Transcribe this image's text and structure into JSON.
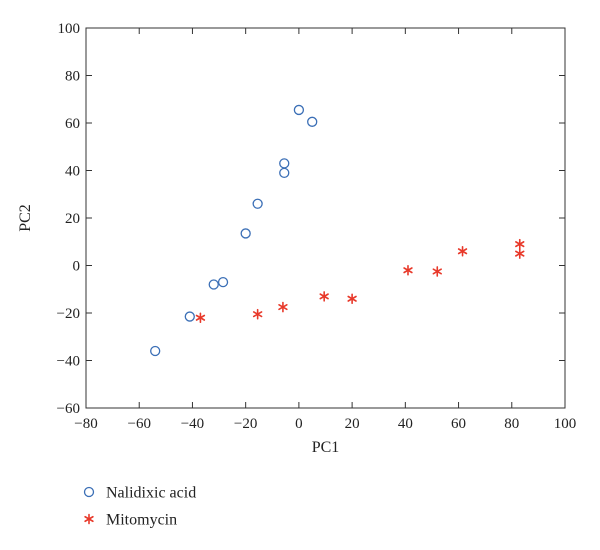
{
  "chart_data": {
    "type": "scatter",
    "title": "",
    "xlabel": "PC1",
    "ylabel": "PC2",
    "xlim": [
      -80,
      100
    ],
    "ylim": [
      -60,
      100
    ],
    "xticks": [
      -80,
      -60,
      -40,
      -20,
      0,
      20,
      40,
      60,
      80,
      100
    ],
    "yticks": [
      -60,
      -40,
      -20,
      0,
      20,
      40,
      60,
      80,
      100
    ],
    "xtick_labels": [
      "−80",
      "−60",
      "−40",
      "−20",
      "0",
      "20",
      "40",
      "60",
      "80",
      "100"
    ],
    "ytick_labels": [
      "−60",
      "−40",
      "−20",
      "0",
      "20",
      "40",
      "60",
      "80",
      "100"
    ],
    "grid": false,
    "legend_position": "below the plot, left",
    "series": [
      {
        "name": "Nalidixic acid",
        "marker": "open-circle",
        "color": "#3b6fb6",
        "points": [
          {
            "x": -54,
            "y": -36
          },
          {
            "x": -41,
            "y": -21.5
          },
          {
            "x": -32,
            "y": -8
          },
          {
            "x": -28.5,
            "y": -7
          },
          {
            "x": -20,
            "y": 13.5
          },
          {
            "x": -15.5,
            "y": 26
          },
          {
            "x": -5.5,
            "y": 43
          },
          {
            "x": -5.5,
            "y": 39
          },
          {
            "x": 0,
            "y": 65.5
          },
          {
            "x": 5,
            "y": 60.5
          }
        ]
      },
      {
        "name": "Mitomycin",
        "marker": "asterisk",
        "color": "#e8392a",
        "points": [
          {
            "x": -37,
            "y": -22
          },
          {
            "x": -15.5,
            "y": -20.5
          },
          {
            "x": -6,
            "y": -17.5
          },
          {
            "x": 9.5,
            "y": -13
          },
          {
            "x": 20,
            "y": -14
          },
          {
            "x": 41,
            "y": -2
          },
          {
            "x": 52,
            "y": -2.5
          },
          {
            "x": 61.5,
            "y": 6
          },
          {
            "x": 83,
            "y": 9
          },
          {
            "x": 83,
            "y": 5
          }
        ]
      }
    ]
  }
}
